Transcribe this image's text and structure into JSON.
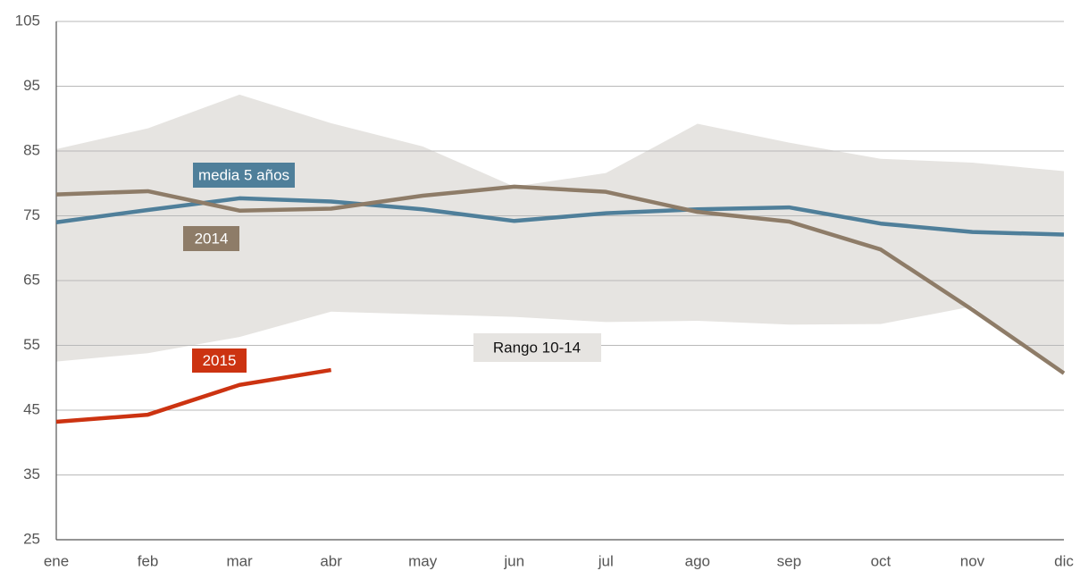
{
  "chart_data": {
    "type": "line",
    "categories": [
      "ene",
      "feb",
      "mar",
      "abr",
      "may",
      "jun",
      "jul",
      "ago",
      "sep",
      "oct",
      "nov",
      "dic"
    ],
    "ylim": [
      25,
      105
    ],
    "yticks": [
      25,
      35,
      45,
      55,
      65,
      75,
      85,
      95,
      105
    ],
    "grid": true,
    "band": {
      "name": "Rango 10-14",
      "color": "#e6e4e1",
      "upper": [
        85.3,
        88.5,
        93.7,
        89.3,
        85.7,
        79.5,
        81.6,
        89.2,
        86.3,
        83.8,
        83.2,
        81.9
      ],
      "lower": [
        52.5,
        53.8,
        56.3,
        60.2,
        59.8,
        59.4,
        58.6,
        58.8,
        58.2,
        58.3,
        61.0,
        50.5
      ]
    },
    "series": [
      {
        "name": "media 5 años",
        "color": "#4f7f9a",
        "values": [
          74.0,
          75.9,
          77.7,
          77.2,
          76.0,
          74.2,
          75.4,
          76.0,
          76.3,
          73.8,
          72.5,
          72.1
        ]
      },
      {
        "name": "2014",
        "color": "#8e7c68",
        "values": [
          78.3,
          78.8,
          75.8,
          76.1,
          78.1,
          79.5,
          78.7,
          75.6,
          74.1,
          69.8,
          60.5,
          50.7
        ]
      },
      {
        "name": "2015",
        "color": "#cc3311",
        "values": [
          43.2,
          44.3,
          48.9,
          51.2,
          null,
          null,
          null,
          null,
          null,
          null,
          null,
          null
        ]
      }
    ]
  }
}
